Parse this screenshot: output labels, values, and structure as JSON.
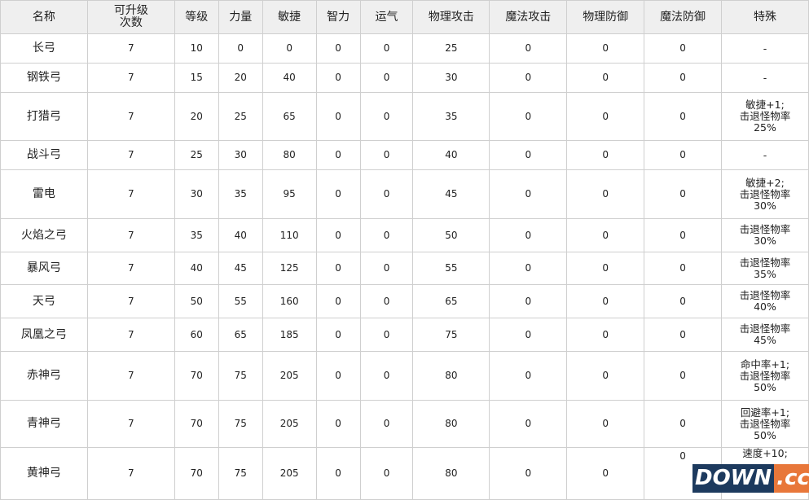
{
  "headers": [
    "名称",
    "可升级次数",
    "等级",
    "力量",
    "敏捷",
    "智力",
    "运气",
    "物理攻击",
    "魔法攻击",
    "物理防御",
    "魔法防御",
    "特殊"
  ],
  "rows": [
    [
      "长弓",
      "7",
      "10",
      "0",
      "0",
      "0",
      "0",
      "25",
      "0",
      "0",
      "0",
      "-"
    ],
    [
      "钢铁弓",
      "7",
      "15",
      "20",
      "40",
      "0",
      "0",
      "30",
      "0",
      "0",
      "0",
      "-"
    ],
    [
      "打猎弓",
      "7",
      "20",
      "25",
      "65",
      "0",
      "0",
      "35",
      "0",
      "0",
      "0",
      "敏捷+1;\n击退怪物率\n25%"
    ],
    [
      "战斗弓",
      "7",
      "25",
      "30",
      "80",
      "0",
      "0",
      "40",
      "0",
      "0",
      "0",
      "-"
    ],
    [
      "雷电",
      "7",
      "30",
      "35",
      "95",
      "0",
      "0",
      "45",
      "0",
      "0",
      "0",
      "敏捷+2;\n击退怪物率\n30%"
    ],
    [
      "火焰之弓",
      "7",
      "35",
      "40",
      "110",
      "0",
      "0",
      "50",
      "0",
      "0",
      "0",
      "击退怪物率\n30%"
    ],
    [
      "暴风弓",
      "7",
      "40",
      "45",
      "125",
      "0",
      "0",
      "55",
      "0",
      "0",
      "0",
      "击退怪物率\n35%"
    ],
    [
      "天弓",
      "7",
      "50",
      "55",
      "160",
      "0",
      "0",
      "65",
      "0",
      "0",
      "0",
      "击退怪物率\n40%"
    ],
    [
      "凤凰之弓",
      "7",
      "60",
      "65",
      "185",
      "0",
      "0",
      "75",
      "0",
      "0",
      "0",
      "击退怪物率\n45%"
    ],
    [
      "赤神弓",
      "7",
      "70",
      "75",
      "205",
      "0",
      "0",
      "80",
      "0",
      "0",
      "0",
      "命中率+1;\n击退怪物率\n50%"
    ],
    [
      "青神弓",
      "7",
      "70",
      "75",
      "205",
      "0",
      "0",
      "80",
      "0",
      "0",
      "0",
      "回避率+1;\n击退怪物率\n50%"
    ],
    [
      "黄神弓",
      "7",
      "70",
      "75",
      "205",
      "0",
      "0",
      "80",
      "0",
      "0",
      "0",
      "速度+10;"
    ]
  ],
  "watermark": {
    "left": "DOWN",
    "right": ".cc"
  }
}
